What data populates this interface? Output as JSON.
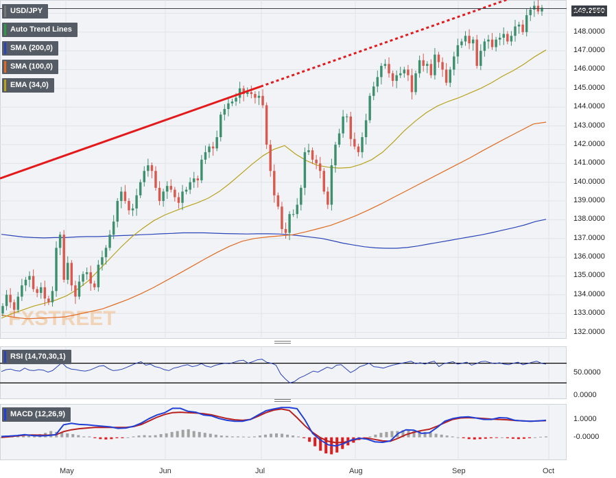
{
  "chart_data": {
    "type": "candlestick",
    "symbol": "USD/JPY",
    "last_price": "149.2550",
    "price_axis": {
      "ylim": [
        131.8,
        149.6
      ],
      "ticks": [
        "132.0000",
        "133.0000",
        "134.0000",
        "135.0000",
        "136.0000",
        "137.0000",
        "138.0000",
        "139.0000",
        "140.0000",
        "141.0000",
        "142.0000",
        "143.0000",
        "144.0000",
        "145.0000",
        "146.0000",
        "147.0000",
        "148.0000",
        "149.0000"
      ]
    },
    "x_axis": {
      "months": [
        "May",
        "Jun",
        "Jul",
        "Aug",
        "Sep",
        "Oct"
      ]
    },
    "legend": [
      {
        "label": "USD/JPY",
        "color": "#777777"
      },
      {
        "label": "Auto Trend Lines",
        "color": "#2e9a48"
      },
      {
        "label": "SMA (200,0)",
        "color": "#2a43b8"
      },
      {
        "label": "SMA (100,0)",
        "color": "#e2691f"
      },
      {
        "label": "EMA (34,0)",
        "color": "#b7a21a"
      }
    ],
    "colors": {
      "up": "#3d8f6e",
      "down": "#d9594f",
      "trend": "#e3191c",
      "sma200": "#2a43b8",
      "sma100": "#e2691f",
      "ema34": "#b7a21a",
      "rsi": "#2a43b8",
      "macd": "#1f3fd6",
      "signal": "#b81f1f"
    },
    "closes": [
      133.4,
      134.0,
      133.6,
      133.2,
      133.9,
      134.5,
      134.8,
      135.0,
      134.3,
      134.1,
      134.4,
      133.8,
      133.6,
      134.2,
      136.5,
      137.2,
      134.8,
      135.7,
      134.5,
      133.9,
      134.7,
      135.1,
      135.2,
      134.6,
      134.4,
      135.6,
      136.0,
      136.5,
      137.2,
      137.9,
      139.0,
      139.5,
      139.0,
      138.5,
      138.6,
      139.3,
      140.0,
      140.6,
      140.9,
      140.6,
      139.7,
      139.0,
      139.5,
      139.8,
      139.6,
      139.2,
      138.9,
      139.5,
      139.6,
      140.0,
      140.2,
      140.1,
      141.2,
      141.6,
      141.9,
      141.8,
      142.4,
      143.6,
      143.9,
      144.2,
      144.3,
      144.5,
      145.0,
      144.7,
      144.8,
      144.7,
      144.5,
      144.6,
      144.1,
      142.0,
      140.6,
      139.3,
      138.7,
      137.5,
      137.3,
      138.3,
      138.3,
      138.8,
      139.7,
      141.6,
      141.7,
      141.2,
      141.0,
      140.6,
      139.5,
      138.8,
      140.9,
      142.0,
      142.6,
      143.5,
      143.5,
      142.3,
      141.9,
      141.6,
      142.4,
      143.3,
      144.6,
      145.1,
      145.6,
      146.2,
      146.3,
      145.8,
      145.4,
      145.7,
      145.8,
      146.0,
      145.7,
      144.8,
      145.8,
      146.5,
      146.2,
      146.3,
      145.7,
      146.8,
      146.4,
      146.0,
      145.3,
      146.0,
      146.7,
      147.3,
      147.5,
      147.8,
      147.4,
      147.6,
      146.2,
      147.0,
      147.5,
      147.6,
      147.2,
      147.6,
      147.7,
      147.9,
      147.5,
      147.8,
      148.3,
      148.4,
      148.0,
      148.9,
      149.2,
      149.4,
      149.1,
      149.3
    ],
    "sma200": [
      137.22,
      137.15,
      137.08,
      137.05,
      137.03,
      137.05,
      137.05,
      137.08,
      137.1,
      137.1,
      137.12,
      137.15,
      137.17,
      137.2,
      137.22,
      137.25,
      137.27,
      137.3,
      137.3,
      137.3,
      137.28,
      137.26,
      137.25,
      137.24,
      137.25,
      137.25,
      137.24,
      137.2,
      137.14,
      137.07,
      137.0,
      136.88,
      136.75,
      136.65,
      136.56,
      136.5,
      136.48,
      136.48,
      136.52,
      136.6,
      136.7,
      136.8,
      136.9,
      137.0,
      137.1,
      137.2,
      137.32,
      137.45,
      137.58,
      137.72,
      137.9,
      138.02
    ],
    "sma100": [
      132.92,
      132.8,
      132.72,
      132.75,
      132.78,
      132.82,
      132.95,
      133.1,
      133.25,
      133.5,
      133.75,
      134.05,
      134.38,
      134.75,
      135.12,
      135.5,
      135.88,
      136.25,
      136.58,
      136.85,
      137.0,
      137.08,
      137.14,
      137.2,
      137.35,
      137.52,
      137.7,
      137.95,
      138.22,
      138.52,
      138.85,
      139.2,
      139.55,
      139.9,
      140.25,
      140.6,
      140.95,
      141.3,
      141.68,
      142.04,
      142.4,
      142.75,
      143.1,
      143.2
    ],
    "ema34": [
      132.75,
      133.0,
      133.2,
      133.4,
      133.55,
      133.72,
      133.95,
      134.3,
      134.75,
      135.35,
      135.95,
      136.55,
      137.1,
      137.55,
      137.95,
      138.25,
      138.48,
      138.7,
      138.9,
      139.15,
      139.5,
      139.95,
      140.45,
      140.95,
      141.4,
      141.75,
      141.95,
      141.5,
      141.15,
      140.9,
      140.8,
      140.75,
      140.78,
      140.95,
      141.2,
      141.6,
      142.15,
      142.75,
      143.25,
      143.7,
      144.05,
      144.3,
      144.5,
      144.75,
      145.0,
      145.3,
      145.65,
      145.95,
      146.3,
      146.7,
      147.05
    ],
    "rsi": {
      "label": "RSI (14,70,30,1)",
      "upper": 70,
      "lower": 30,
      "ticks": [
        "50.0000",
        "0.0000"
      ],
      "ylim": [
        0,
        100
      ],
      "values": [
        53,
        57,
        58,
        55,
        54,
        60,
        56,
        55,
        57,
        56,
        52,
        55,
        63,
        71,
        62,
        58,
        57,
        55,
        54,
        56,
        60,
        64,
        65,
        59,
        55,
        56,
        58,
        62,
        66,
        70,
        73,
        66,
        68,
        63,
        61,
        57,
        55,
        60,
        62,
        65,
        67,
        63,
        65,
        69,
        64,
        62,
        66,
        68,
        70,
        69,
        72,
        75,
        76,
        70,
        73,
        77,
        78,
        72,
        70,
        66,
        48,
        38,
        30,
        33,
        40,
        44,
        49,
        54,
        52,
        57,
        62,
        59,
        66,
        67,
        59,
        51,
        56,
        63,
        66,
        70,
        63,
        62,
        60,
        63,
        66,
        68,
        70,
        72,
        74,
        69,
        71,
        68,
        72,
        74,
        63,
        69,
        71,
        73,
        68,
        70,
        72,
        66,
        69,
        73,
        74,
        71,
        69,
        71,
        68,
        67,
        70,
        72,
        67,
        69,
        72,
        74,
        70,
        68
      ]
    },
    "macd": {
      "label": "MACD (12,26,9)",
      "ticks": [
        "1.0000",
        "-0.0000"
      ],
      "ylim": [
        -1.2,
        1.75
      ],
      "macd": [
        0.05,
        0.07,
        0.1,
        0.15,
        0.1,
        0.08,
        0.1,
        0.15,
        0.7,
        0.78,
        0.72,
        0.7,
        0.66,
        0.62,
        0.58,
        0.5,
        0.52,
        0.62,
        0.8,
        1.05,
        1.25,
        1.38,
        1.62,
        1.62,
        1.45,
        1.4,
        1.25,
        1.2,
        1.05,
        0.95,
        0.9,
        0.9,
        1.0,
        1.25,
        1.48,
        1.58,
        1.66,
        1.66,
        1.6,
        0.98,
        0.22,
        -0.15,
        -0.42,
        -0.48,
        -0.35,
        -0.15,
        -0.05,
        -0.1,
        -0.25,
        -0.28,
        -0.2,
        0.22,
        0.42,
        0.4,
        0.22,
        0.25,
        0.55,
        0.9,
        1.05,
        1.12,
        1.15,
        1.08,
        1.0,
        1.0,
        1.1,
        1.08,
        0.95,
        0.92,
        0.9,
        0.92,
        0.95
      ],
      "signal": [
        0.0,
        0.03,
        0.08,
        0.12,
        0.13,
        0.12,
        0.12,
        0.14,
        0.32,
        0.42,
        0.48,
        0.52,
        0.55,
        0.56,
        0.55,
        0.55,
        0.55,
        0.6,
        0.72,
        0.92,
        1.12,
        1.28,
        1.38,
        1.4,
        1.38,
        1.36,
        1.32,
        1.26,
        1.15,
        1.05,
        0.98,
        0.95,
        1.0,
        1.18,
        1.38,
        1.52,
        1.58,
        1.5,
        1.1,
        0.65,
        0.28,
        -0.02,
        -0.22,
        -0.3,
        -0.28,
        -0.18,
        -0.08,
        -0.04,
        -0.12,
        -0.2,
        -0.22,
        -0.05,
        0.15,
        0.28,
        0.38,
        0.45,
        0.62,
        0.82,
        1.0,
        1.08,
        1.1,
        1.08,
        1.05,
        1.02,
        1.0,
        0.98,
        0.94,
        0.92,
        0.9,
        0.92,
        0.93
      ],
      "histogram": [
        0.0,
        0.05,
        0.1,
        0.12,
        0.1,
        0.15,
        0.15,
        0.18,
        0.25,
        0.35,
        0.3,
        0.28,
        0.22,
        0.18,
        0.12,
        0.05,
        0.05,
        -0.05,
        -0.1,
        -0.12,
        -0.1,
        -0.05,
        -0.05,
        0.0,
        0.05,
        0.1,
        0.12,
        0.1,
        0.12,
        0.18,
        0.22,
        0.3,
        0.35,
        0.42,
        0.45,
        0.35,
        0.3,
        0.25,
        0.2,
        0.15,
        0.1,
        0.08,
        0.05,
        0.05,
        0.04,
        0.03,
        0.05,
        0.1,
        0.15,
        0.2,
        0.22,
        0.2,
        0.15,
        0.1,
        0.05,
        -0.05,
        -0.25,
        -0.5,
        -0.75,
        -0.9,
        -0.95,
        -0.85,
        -0.65,
        -0.45,
        -0.3,
        -0.15,
        -0.05,
        0.05,
        0.15,
        0.25,
        0.3,
        0.35,
        0.35,
        0.4,
        0.38,
        0.35,
        0.32,
        0.3,
        0.28,
        0.2,
        0.15,
        0.1,
        0.05,
        0.0,
        -0.05,
        -0.1,
        -0.12,
        -0.1,
        -0.08,
        -0.05,
        -0.02,
        0.0,
        -0.05,
        -0.08,
        -0.1,
        -0.08,
        -0.05,
        0.0,
        0.03,
        0.05
      ]
    }
  }
}
